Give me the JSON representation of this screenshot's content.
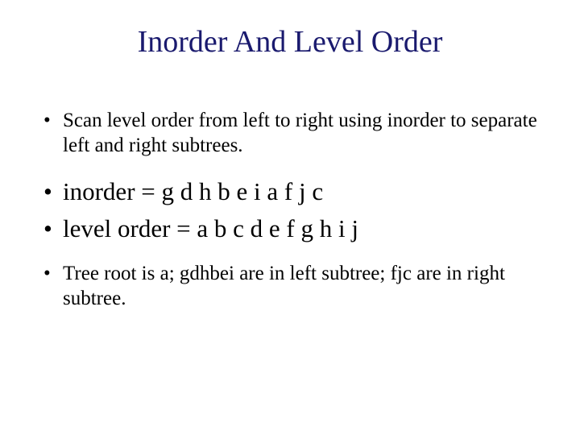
{
  "title_text": "Inorder And Level Order",
  "title_color": "#1a1a6e",
  "body_color": "#000000",
  "background_color": "#ffffff",
  "font_family": "Times New Roman",
  "title_fontsize": 38,
  "small_fontsize": 25,
  "large_fontsize": 31,
  "bullets": [
    {
      "text": "Scan level order from left to right using inorder to separate left and right subtrees.",
      "size": "small"
    },
    {
      "text": " inorder = g d h b e i a f j c",
      "size": "large"
    },
    {
      "text": " level order = a b c d e f g h i j",
      "size": "large"
    },
    {
      "text": "Tree root is a; gdhbei are in left subtree; fjc are in right subtree.",
      "size": "small"
    }
  ]
}
